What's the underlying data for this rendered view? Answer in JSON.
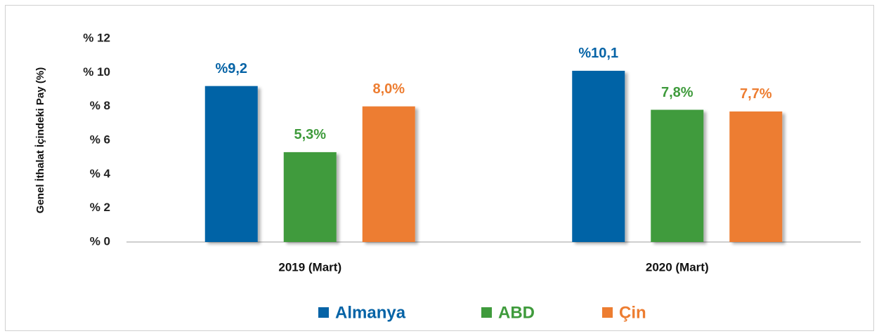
{
  "chart_data": {
    "type": "bar",
    "y_label": "Genel İthalat İçindeki Pay  (%)",
    "categories": [
      "2019 (Mart)",
      "2020 (Mart)"
    ],
    "series": [
      {
        "name": "Almanya",
        "color": "#0563a6",
        "values": [
          9.2,
          10.1
        ],
        "value_labels": [
          "%9,2",
          "%10,1"
        ]
      },
      {
        "name": "ABD",
        "color": "#3f9b3c",
        "values": [
          5.3,
          7.8
        ],
        "value_labels": [
          "5,3%",
          "7,8%"
        ]
      },
      {
        "name": "Çin",
        "color": "#ed7d31",
        "values": [
          8.0,
          7.7
        ],
        "value_labels": [
          "8,0%",
          "7,7%"
        ]
      }
    ],
    "ylim": [
      0,
      12
    ],
    "yticks": [
      {
        "value": 0,
        "label": "% 0"
      },
      {
        "value": 2,
        "label": "% 2"
      },
      {
        "value": 4,
        "label": "% 4"
      },
      {
        "value": 6,
        "label": "% 6"
      },
      {
        "value": 8,
        "label": "% 8"
      },
      {
        "value": 10,
        "label": "% 10"
      },
      {
        "value": 12,
        "label": "% 12"
      }
    ],
    "grid": false,
    "legend": "bottom"
  }
}
